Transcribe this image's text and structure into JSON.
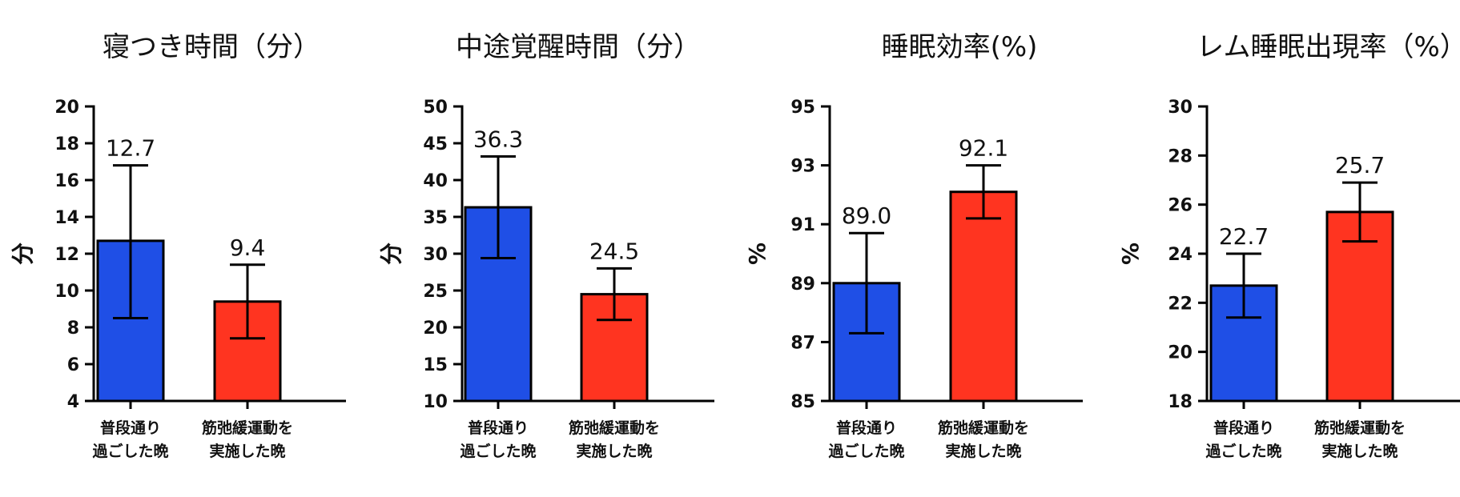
{
  "colors": {
    "normal": "#1f4fe6",
    "exercise": "#ff3420"
  },
  "chart_data": [
    {
      "type": "bar",
      "title": "寝つき時間（分）",
      "ylabel": "分",
      "ylim": [
        4,
        20
      ],
      "yticks": [
        4,
        6,
        8,
        10,
        12,
        14,
        16,
        18,
        20
      ],
      "categories": [
        [
          "普段通り",
          "過ごした晩"
        ],
        [
          "筋弛緩運動を",
          "実施した晩"
        ]
      ],
      "values": [
        12.7,
        9.4
      ],
      "value_labels": [
        "12.7",
        "9.4"
      ],
      "err_low": [
        8.5,
        7.4
      ],
      "err_high": [
        16.8,
        11.4
      ]
    },
    {
      "type": "bar",
      "title": "中途覚醒時間（分）",
      "ylabel": "分",
      "ylim": [
        10,
        50
      ],
      "yticks": [
        10,
        15,
        20,
        25,
        30,
        35,
        40,
        45,
        50
      ],
      "categories": [
        [
          "普段通り",
          "過ごした晩"
        ],
        [
          "筋弛緩運動を",
          "実施した晩"
        ]
      ],
      "values": [
        36.3,
        24.5
      ],
      "value_labels": [
        "36.3",
        "24.5"
      ],
      "err_low": [
        29.4,
        21.0
      ],
      "err_high": [
        43.2,
        28.0
      ]
    },
    {
      "type": "bar",
      "title": "睡眠効率(%)",
      "ylabel": "%",
      "ylim": [
        85,
        95
      ],
      "yticks": [
        85,
        87,
        89,
        91,
        93,
        95
      ],
      "categories": [
        [
          "普段通り",
          "過ごした晩"
        ],
        [
          "筋弛緩運動を",
          "実施した晩"
        ]
      ],
      "values": [
        89.0,
        92.1
      ],
      "value_labels": [
        "89.0",
        "92.1"
      ],
      "err_low": [
        87.3,
        91.2
      ],
      "err_high": [
        90.7,
        93.0
      ]
    },
    {
      "type": "bar",
      "title": "レム睡眠出現率（%）",
      "ylabel": "%",
      "ylim": [
        18,
        30
      ],
      "yticks": [
        18,
        20,
        22,
        24,
        26,
        28,
        30
      ],
      "categories": [
        [
          "普段通り",
          "過ごした晩"
        ],
        [
          "筋弛緩運動を",
          "実施した晩"
        ]
      ],
      "values": [
        22.7,
        25.7
      ],
      "value_labels": [
        "22.7",
        "25.7"
      ],
      "err_low": [
        21.4,
        24.5
      ],
      "err_high": [
        24.0,
        26.9
      ]
    }
  ]
}
